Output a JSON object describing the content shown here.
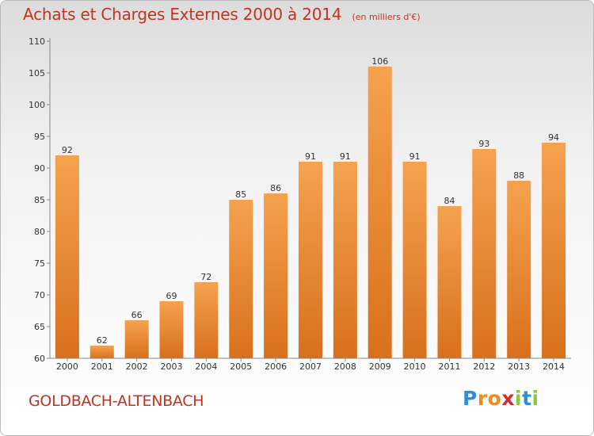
{
  "header": {
    "title": "Achats et Charges Externes 2000 à 2014",
    "subtitle": "(en milliers d'€)"
  },
  "footer": {
    "commune": "GOLDBACH-ALTENBACH",
    "logo_letters": [
      "P",
      "r",
      "o",
      "x",
      "i",
      "t",
      "i"
    ],
    "logo_colors": [
      "#2d8fd5",
      "#f08a1c",
      "#f08a1c",
      "#d62c2c",
      "#8dc63f",
      "#2d8fd5",
      "#8dc63f"
    ]
  },
  "colors": {
    "bar_top": "#f5a24f",
    "bar_bottom": "#d8701c",
    "title": "#c1341f"
  },
  "chart_data": {
    "type": "bar",
    "title": "Achats et Charges Externes 2000 à 2014",
    "subtitle": "(en milliers d'€)",
    "categories": [
      "2000",
      "2001",
      "2002",
      "2003",
      "2004",
      "2005",
      "2006",
      "2007",
      "2008",
      "2009",
      "2010",
      "2011",
      "2012",
      "2013",
      "2014"
    ],
    "values": [
      92,
      62,
      66,
      69,
      72,
      85,
      86,
      91,
      91,
      106,
      91,
      84,
      93,
      88,
      94
    ],
    "ylim": [
      60,
      110
    ],
    "yticks": [
      60,
      65,
      70,
      75,
      80,
      85,
      90,
      95,
      100,
      105,
      110
    ],
    "grid": false,
    "data_labels": true
  }
}
